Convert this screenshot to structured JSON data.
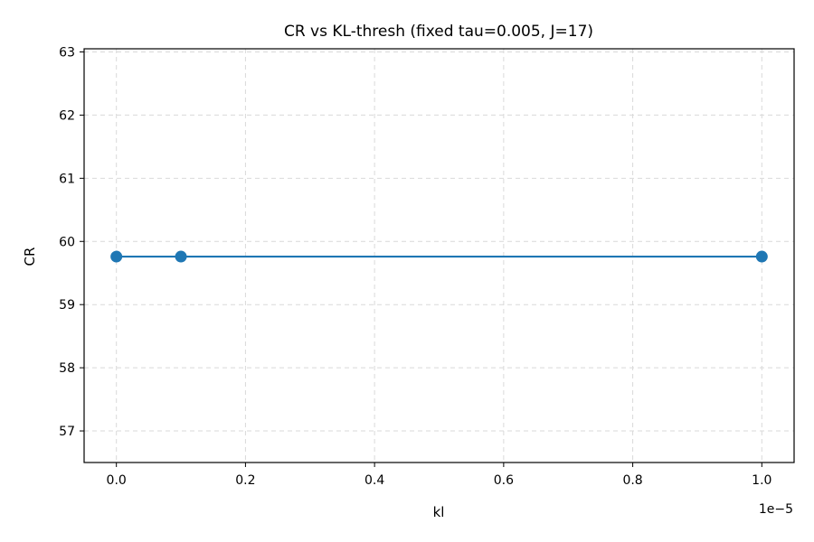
{
  "chart_data": {
    "type": "line",
    "title": "CR vs KL-thresh (fixed tau=0.005, J=17)",
    "xlabel": "kl",
    "ylabel": "CR",
    "x_offset_text": "1e−5",
    "x_scale": 1e-05,
    "xlim": [
      -0.05,
      1.05
    ],
    "ylim": [
      56.5,
      63.05
    ],
    "x_ticks": [
      0.0,
      0.2,
      0.4,
      0.6,
      0.8,
      1.0
    ],
    "x_tick_labels": [
      "0.0",
      "0.2",
      "0.4",
      "0.6",
      "0.8",
      "1.0"
    ],
    "y_ticks": [
      57,
      58,
      59,
      60,
      61,
      62,
      63
    ],
    "y_tick_labels": [
      "57",
      "58",
      "59",
      "60",
      "61",
      "62",
      "63"
    ],
    "grid": true,
    "series": [
      {
        "color": "#1f77b4",
        "marker": "circle",
        "x": [
          0.0,
          0.1,
          1.0
        ],
        "y": [
          59.76,
          59.76,
          59.76
        ]
      }
    ]
  }
}
